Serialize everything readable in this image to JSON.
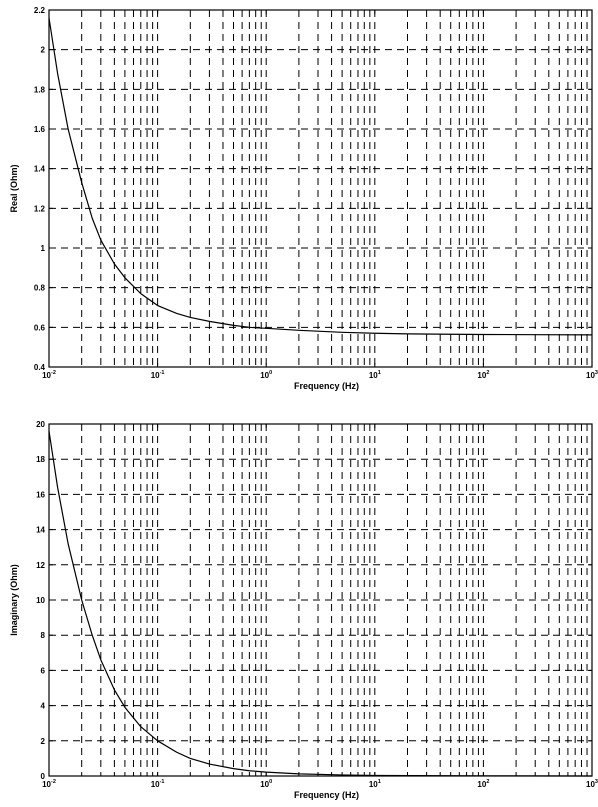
{
  "chart_data": [
    {
      "type": "line",
      "title": "",
      "xlabel": "Frequency (Hz)",
      "ylabel": "Real (Ohm)",
      "xscale": "log",
      "xlim": [
        0.01,
        1000
      ],
      "ylim": [
        0.4,
        2.2
      ],
      "grid": true,
      "x_ticks": [
        {
          "base": "10",
          "exp": "-2"
        },
        {
          "base": "10",
          "exp": "-1"
        },
        {
          "base": "10",
          "exp": "0"
        },
        {
          "base": "10",
          "exp": "1"
        },
        {
          "base": "10",
          "exp": "2"
        },
        {
          "base": "10",
          "exp": "3"
        }
      ],
      "y_ticks": [
        "0.4",
        "0.6",
        "0.8",
        "1",
        "1.2",
        "1.4",
        "1.6",
        "1.8",
        "2",
        "2.2"
      ],
      "series": [
        {
          "color": "#000000",
          "x": [
            0.01,
            0.012,
            0.015,
            0.02,
            0.025,
            0.03,
            0.04,
            0.05,
            0.07,
            0.1,
            0.15,
            0.2,
            0.3,
            0.5,
            0.7,
            1,
            2,
            5,
            10,
            20,
            50,
            100,
            300,
            1000
          ],
          "y": [
            2.16,
            1.88,
            1.6,
            1.33,
            1.15,
            1.04,
            0.92,
            0.85,
            0.77,
            0.71,
            0.67,
            0.65,
            0.63,
            0.61,
            0.6,
            0.595,
            0.585,
            0.575,
            0.57,
            0.567,
            0.565,
            0.564,
            0.563,
            0.562
          ]
        }
      ]
    },
    {
      "type": "line",
      "title": "",
      "xlabel": "Frequency (Hz)",
      "ylabel": "Imaginary (Ohm)",
      "xscale": "log",
      "xlim": [
        0.01,
        1000
      ],
      "ylim": [
        0,
        20
      ],
      "grid": true,
      "x_ticks": [
        {
          "base": "10",
          "exp": "-2"
        },
        {
          "base": "10",
          "exp": "-1"
        },
        {
          "base": "10",
          "exp": "0"
        },
        {
          "base": "10",
          "exp": "1"
        },
        {
          "base": "10",
          "exp": "2"
        },
        {
          "base": "10",
          "exp": "3"
        }
      ],
      "y_ticks": [
        "0",
        "2",
        "4",
        "6",
        "8",
        "10",
        "12",
        "14",
        "16",
        "18",
        "20"
      ],
      "series": [
        {
          "color": "#000000",
          "x": [
            0.01,
            0.012,
            0.015,
            0.02,
            0.025,
            0.03,
            0.04,
            0.05,
            0.07,
            0.1,
            0.15,
            0.2,
            0.3,
            0.5,
            0.7,
            1,
            2,
            5,
            10,
            100,
            1000
          ],
          "y": [
            19.6,
            16.4,
            13.2,
            10,
            8,
            6.6,
            4.9,
            3.9,
            2.8,
            2,
            1.35,
            1,
            0.68,
            0.42,
            0.3,
            0.22,
            0.12,
            0.06,
            0.03,
            0.01,
            0
          ]
        }
      ]
    }
  ]
}
